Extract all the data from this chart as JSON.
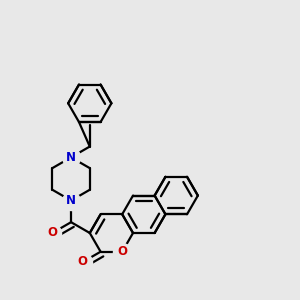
{
  "bg_color": "#e8e8e8",
  "bond_color": "#000000",
  "N_color": "#0000cc",
  "O_color": "#cc0000",
  "bond_width": 1.6,
  "figsize": [
    3.0,
    3.0
  ],
  "dpi": 100,
  "xlim": [
    -0.55,
    0.85
  ],
  "ylim": [
    -0.72,
    0.82
  ]
}
